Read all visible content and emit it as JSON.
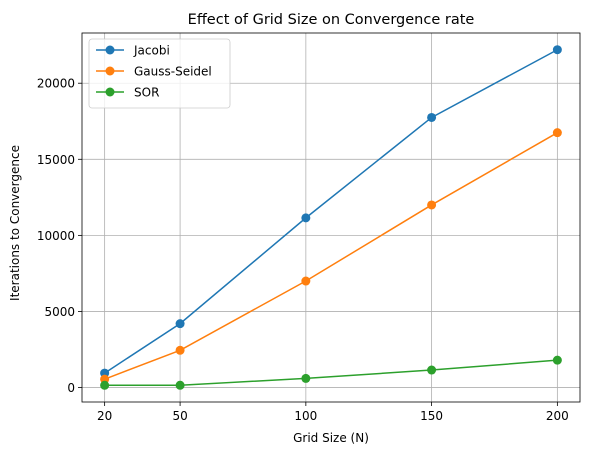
{
  "chart_data": {
    "type": "line",
    "title": "Effect of Grid Size on Convergence rate",
    "xlabel": "Grid Size (N)",
    "ylabel": "Iterations to Convergence",
    "x": [
      20,
      50,
      100,
      150,
      200
    ],
    "xticks": [
      20,
      50,
      100,
      150,
      200
    ],
    "yticks": [
      0,
      5000,
      10000,
      15000,
      20000
    ],
    "xlim": [
      11,
      209
    ],
    "ylim": [
      -950,
      23300
    ],
    "grid": true,
    "legend_position": "top-left",
    "series": [
      {
        "name": "Jacobi",
        "color": "#1f77b4",
        "values": [
          950,
          4200,
          11150,
          17750,
          22200
        ]
      },
      {
        "name": "Gauss-Seidel",
        "color": "#ff7f0e",
        "values": [
          550,
          2450,
          7000,
          12000,
          16750
        ]
      },
      {
        "name": "SOR",
        "color": "#2ca02c",
        "values": [
          150,
          150,
          600,
          1150,
          1800
        ]
      }
    ]
  }
}
